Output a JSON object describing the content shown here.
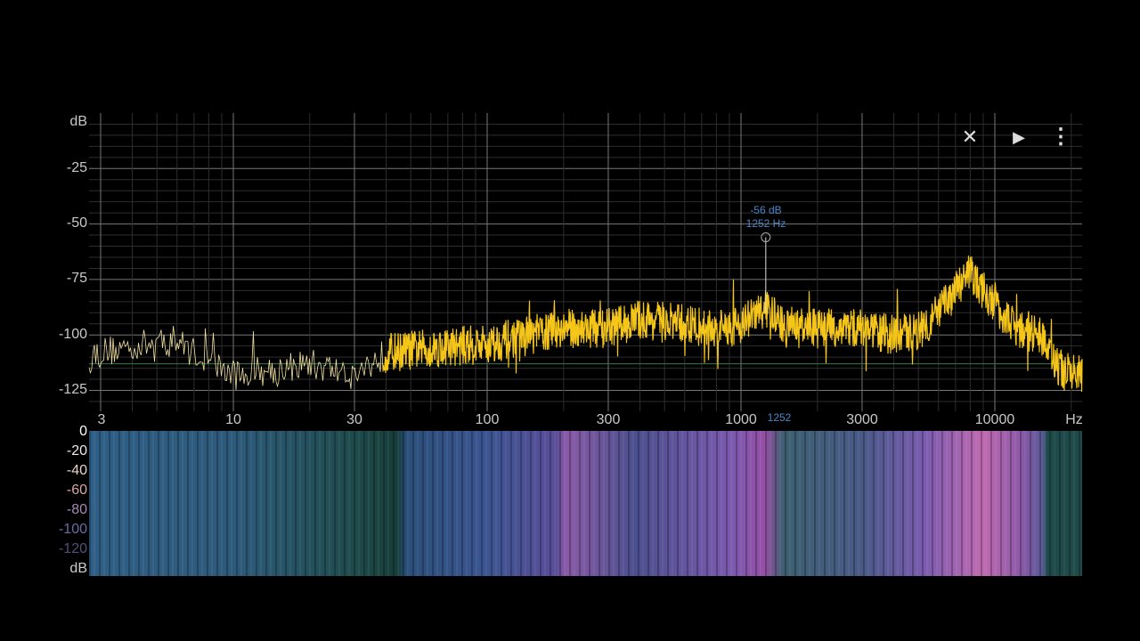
{
  "toolbar": {
    "close_icon": "close-icon",
    "play_icon": "play-icon",
    "menu_icon": "more-vert-icon"
  },
  "colors": {
    "trace": "#f5c518",
    "marker": "#4a86c8",
    "threshold": "#3a7a48"
  },
  "chart_data": {
    "type": "line",
    "xscale": "log",
    "xlabel": "Hz",
    "ylabel": "dB",
    "xlim": [
      2.7,
      20000
    ],
    "ylim": [
      -134,
      0
    ],
    "xticks": [
      "3",
      "10",
      "30",
      "100",
      "300",
      "1000",
      "3000",
      "10000"
    ],
    "yticks": [
      "-25",
      "-50",
      "-75",
      "-100",
      "-125"
    ],
    "grid": true,
    "threshold_db": -113,
    "marker": {
      "db_label": "-56 dB",
      "hz_label": "1252 Hz",
      "axis_label": "1252",
      "freq": 1252,
      "db": -56
    },
    "series": [
      {
        "x": [
          2.7,
          4,
          6,
          8,
          10,
          20,
          30,
          40,
          60,
          100,
          150,
          200,
          300,
          400,
          600,
          800,
          1000,
          1252,
          1500,
          2000,
          3000,
          4000,
          5000,
          6000,
          8000,
          9000,
          12000,
          15000,
          18000,
          20000
        ],
        "y": [
          -109,
          -105,
          -103,
          -112,
          -118,
          -113,
          -118,
          -108,
          -106,
          -104,
          -100,
          -97,
          -97,
          -93,
          -95,
          -98,
          -95,
          -88,
          -97,
          -97,
          -97,
          -100,
          -98,
          -90,
          -72,
          -80,
          -97,
          -100,
          -115,
          -118
        ]
      }
    ]
  },
  "spectrogram": {
    "colorbar_ticks": [
      "0",
      "-20",
      "-40",
      "-60",
      "-80",
      "-100",
      "-120"
    ],
    "unit": "dB"
  }
}
